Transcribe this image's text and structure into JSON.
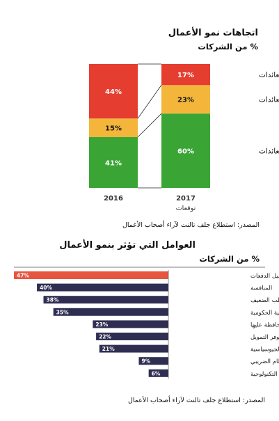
{
  "chart1": {
    "title": "اتجاهات نمو الأعمال",
    "subtitle": "% من الشركات",
    "source": "المصدر: استطلاع جلف تالنت لآراء أصحاب الأعمال",
    "legend_labels": [
      "انخفاض العائدات",
      "استقرار العائدات",
      "نمو العائدات"
    ]
  },
  "chart2": {
    "title": "العوامل التي تؤثر بنمو الأعمال",
    "subtitle": "% من الشركات",
    "source": "المصدر: استطلاع جلف تالنت لآراء أصحاب الأعمال"
  },
  "chart_data": [
    {
      "type": "bar",
      "stacked": true,
      "title": "اتجاهات نمو الأعمال",
      "ylabel": "% من الشركات",
      "categories": [
        "2016",
        "2017"
      ],
      "category_sublabels": [
        "",
        "توقعات"
      ],
      "series": [
        {
          "name": "نمو العائدات",
          "values": [
            41,
            60
          ],
          "labels": [
            "41%",
            "60%"
          ],
          "color": "#3aa535"
        },
        {
          "name": "استقرار العائدات",
          "values": [
            15,
            23
          ],
          "labels": [
            "15%",
            "23%"
          ],
          "color": "#f4b63a"
        },
        {
          "name": "انخفاض العائدات",
          "values": [
            44,
            17
          ],
          "labels": [
            "44%",
            "17%"
          ],
          "color": "#e53e30"
        }
      ],
      "ylim": [
        0,
        100
      ]
    },
    {
      "type": "bar",
      "orientation": "horizontal",
      "title": "العوامل التي تؤثر بنمو الأعمال",
      "xlabel": "% من الشركات",
      "categories": [
        "تحصيل الدفعات",
        "المنافسة",
        "الطلب الضعيف",
        "اللوائح التنظيمية الحكومية",
        "اجتذاب الكوادر والمحافظة عليها",
        "توفر التمويل",
        "التوترات الجيوسياسية",
        "ضريبة القيمة المضافة / النظام الضريبي",
        "التحولات التكنولوجية"
      ],
      "values": [
        47,
        40,
        38,
        35,
        23,
        22,
        21,
        9,
        6
      ],
      "labels": [
        "47%",
        "40%",
        "38%",
        "35%",
        "23%",
        "22%",
        "21%",
        "9%",
        "6%"
      ],
      "highlight_color": "#e8553f",
      "bar_color": "#2f2e52",
      "xlim": [
        0,
        47
      ]
    }
  ]
}
